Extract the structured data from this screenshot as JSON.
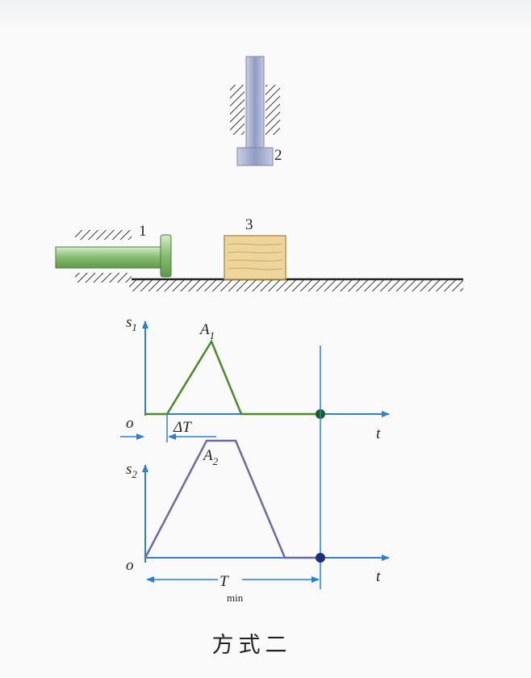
{
  "colors": {
    "ground_hatch": "#3a3a3a",
    "plunger": "#9aa6c8",
    "pusher": "#8dbf7c",
    "block": "#ecd49a",
    "axis": "#2b80d6",
    "curve1": "#4a8a2a",
    "curve2": "#6a6aa8",
    "dot1": "#1c5a24",
    "dot2": "#1c2f7a"
  },
  "labels": {
    "part1": "1",
    "part2": "2",
    "part3": "3",
    "s1": "s",
    "s1_sub": "1",
    "A1": "A",
    "A1_sub": "1",
    "o1": "o",
    "t1": "t",
    "deltaT": "ΔT",
    "s2": "s",
    "s2_sub": "2",
    "A2": "A",
    "A2_sub": "2",
    "o2": "o",
    "t2": "t",
    "Tmin": "T",
    "Tmin_sub": "min"
  },
  "caption": "方式二"
}
